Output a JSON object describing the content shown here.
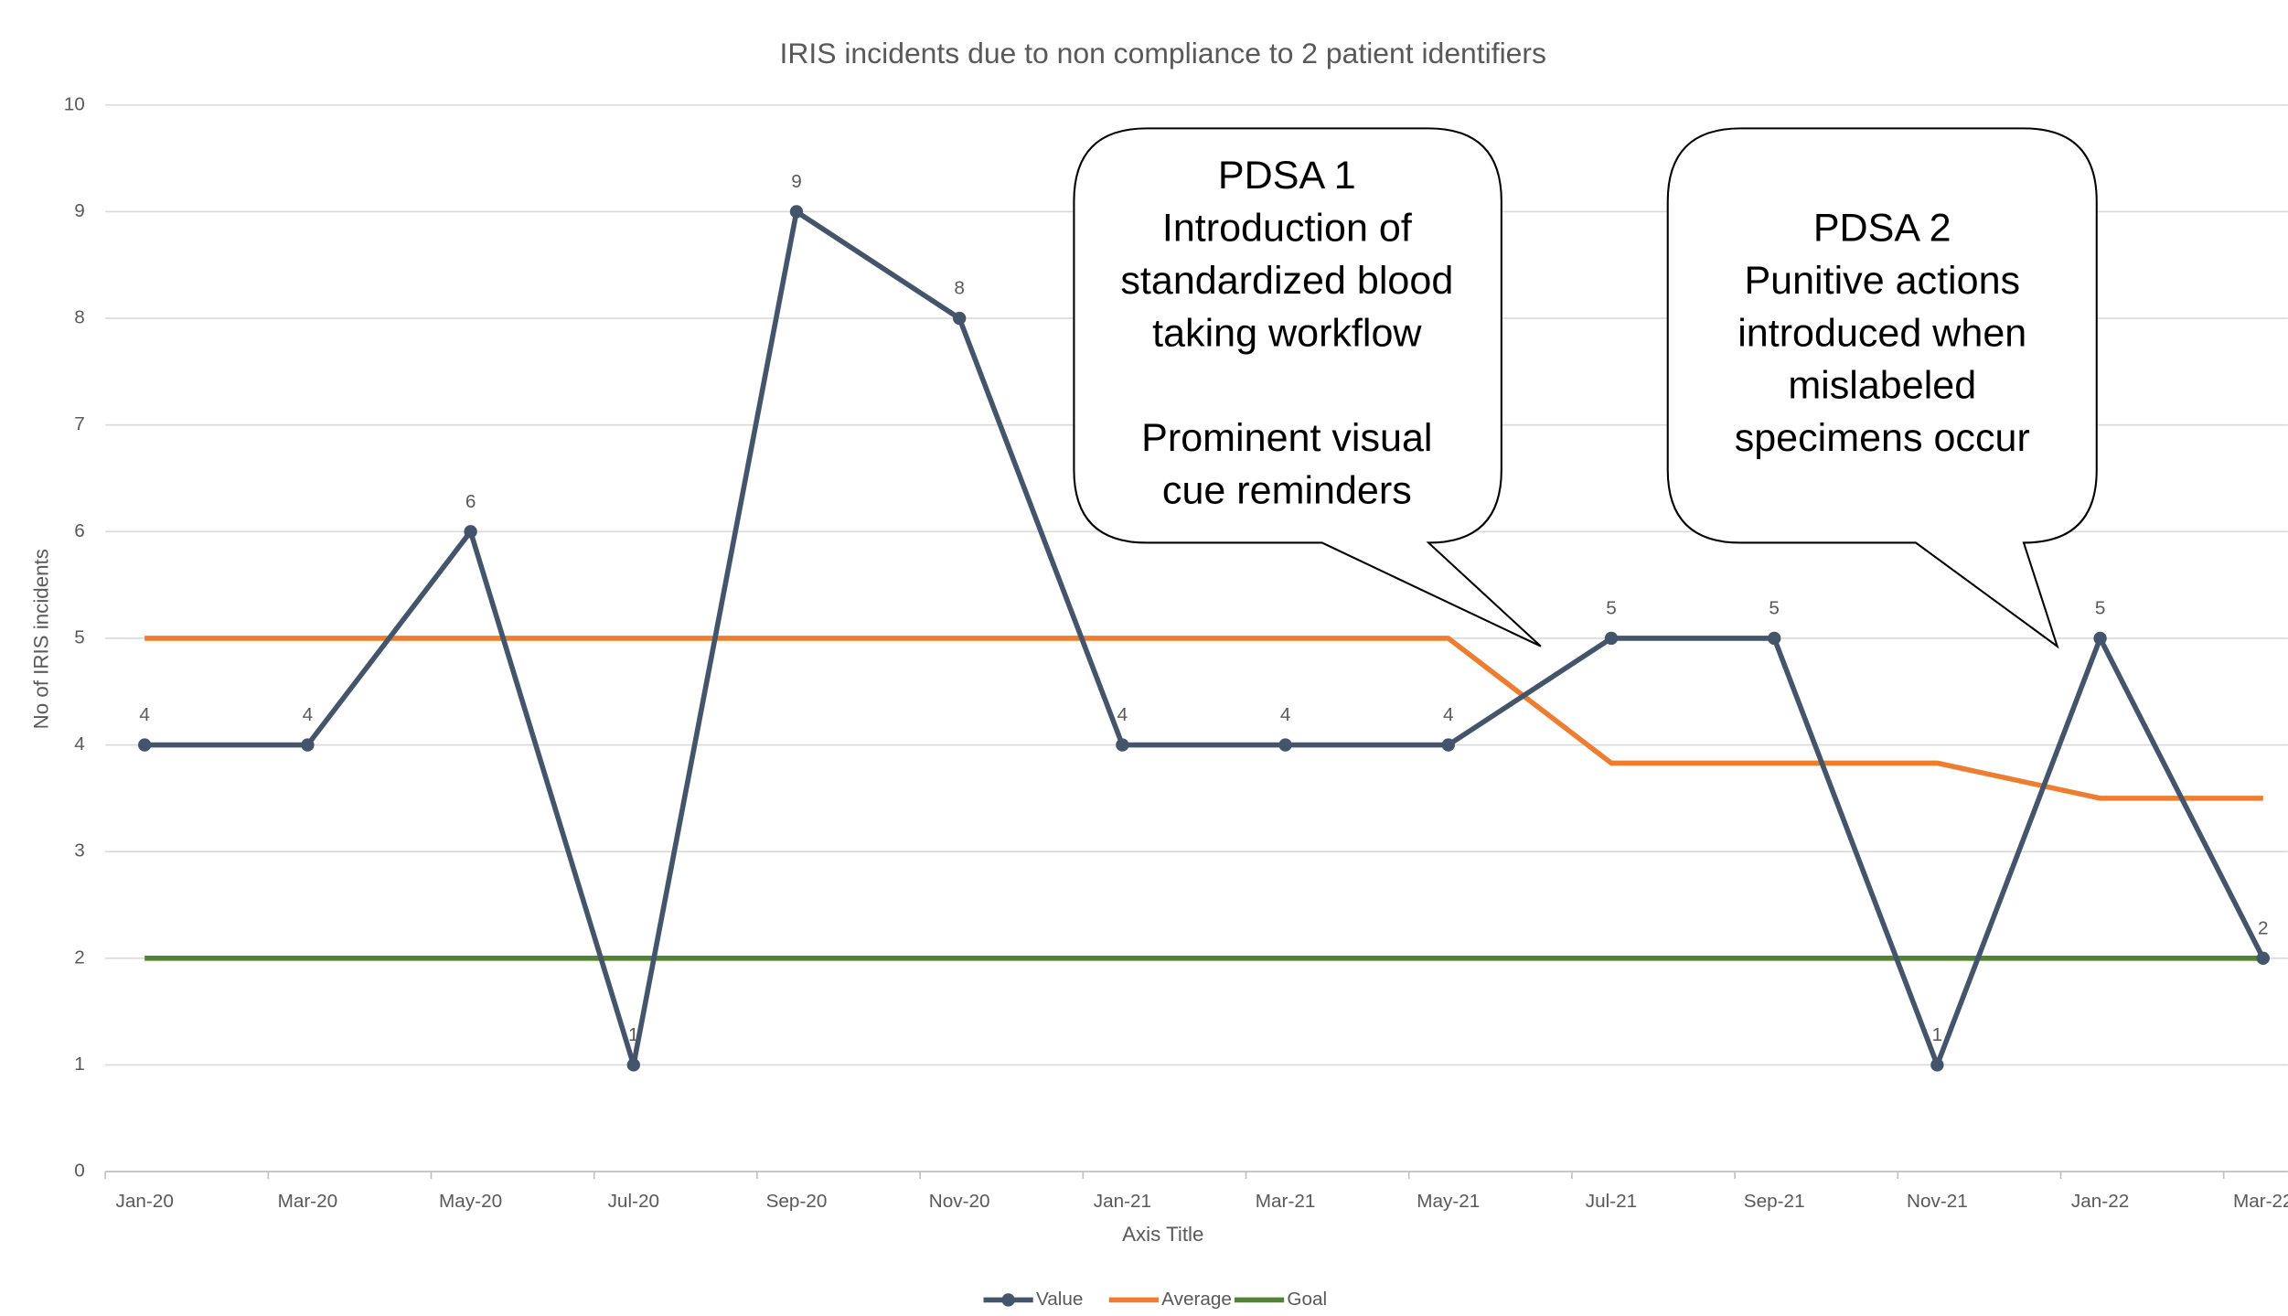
{
  "chart_data": {
    "type": "line",
    "title": "IRIS incidents due to non compliance to 2 patient identifiers",
    "x_label": "Axis Title",
    "y_label": "No of IRIS incidents",
    "categories": [
      "Jan-20",
      "Mar-20",
      "May-20",
      "Jul-20",
      "Sep-20",
      "Nov-20",
      "Jan-21",
      "Mar-21",
      "May-21",
      "Jul-21",
      "Sep-21",
      "Nov-21",
      "Jan-22",
      "Mar-22"
    ],
    "series": [
      {
        "name": "Value",
        "color": "#44546a",
        "markers": true,
        "data_labels": true,
        "values": [
          4,
          4,
          6,
          1,
          9,
          8,
          4,
          4,
          4,
          5,
          5,
          1,
          5,
          2
        ]
      },
      {
        "name": "Average",
        "color": "#ed7d31",
        "values": [
          5,
          5,
          5,
          5,
          5,
          5,
          5,
          5,
          5,
          3.83,
          3.83,
          3.83,
          3.5,
          3.5
        ]
      },
      {
        "name": "Goal",
        "color": "#548235",
        "values": [
          2,
          2,
          2,
          2,
          2,
          2,
          2,
          2,
          2,
          2,
          2,
          2,
          2,
          2
        ]
      }
    ],
    "ylim": [
      0,
      10
    ],
    "yticks": [
      0,
      1,
      2,
      3,
      4,
      5,
      6,
      7,
      8,
      9,
      10
    ],
    "grid": true,
    "legend": "bottom",
    "annotations": [
      {
        "paragraphs": [
          [
            "PDSA 1",
            "Introduction of",
            "standardized blood",
            "taking workflow"
          ],
          [
            "Prominent visual",
            "cue reminders"
          ]
        ]
      },
      {
        "paragraphs": [
          [
            "PDSA 2",
            "Punitive actions",
            "introduced when",
            "mislabeled",
            "specimens occur"
          ]
        ]
      }
    ]
  }
}
